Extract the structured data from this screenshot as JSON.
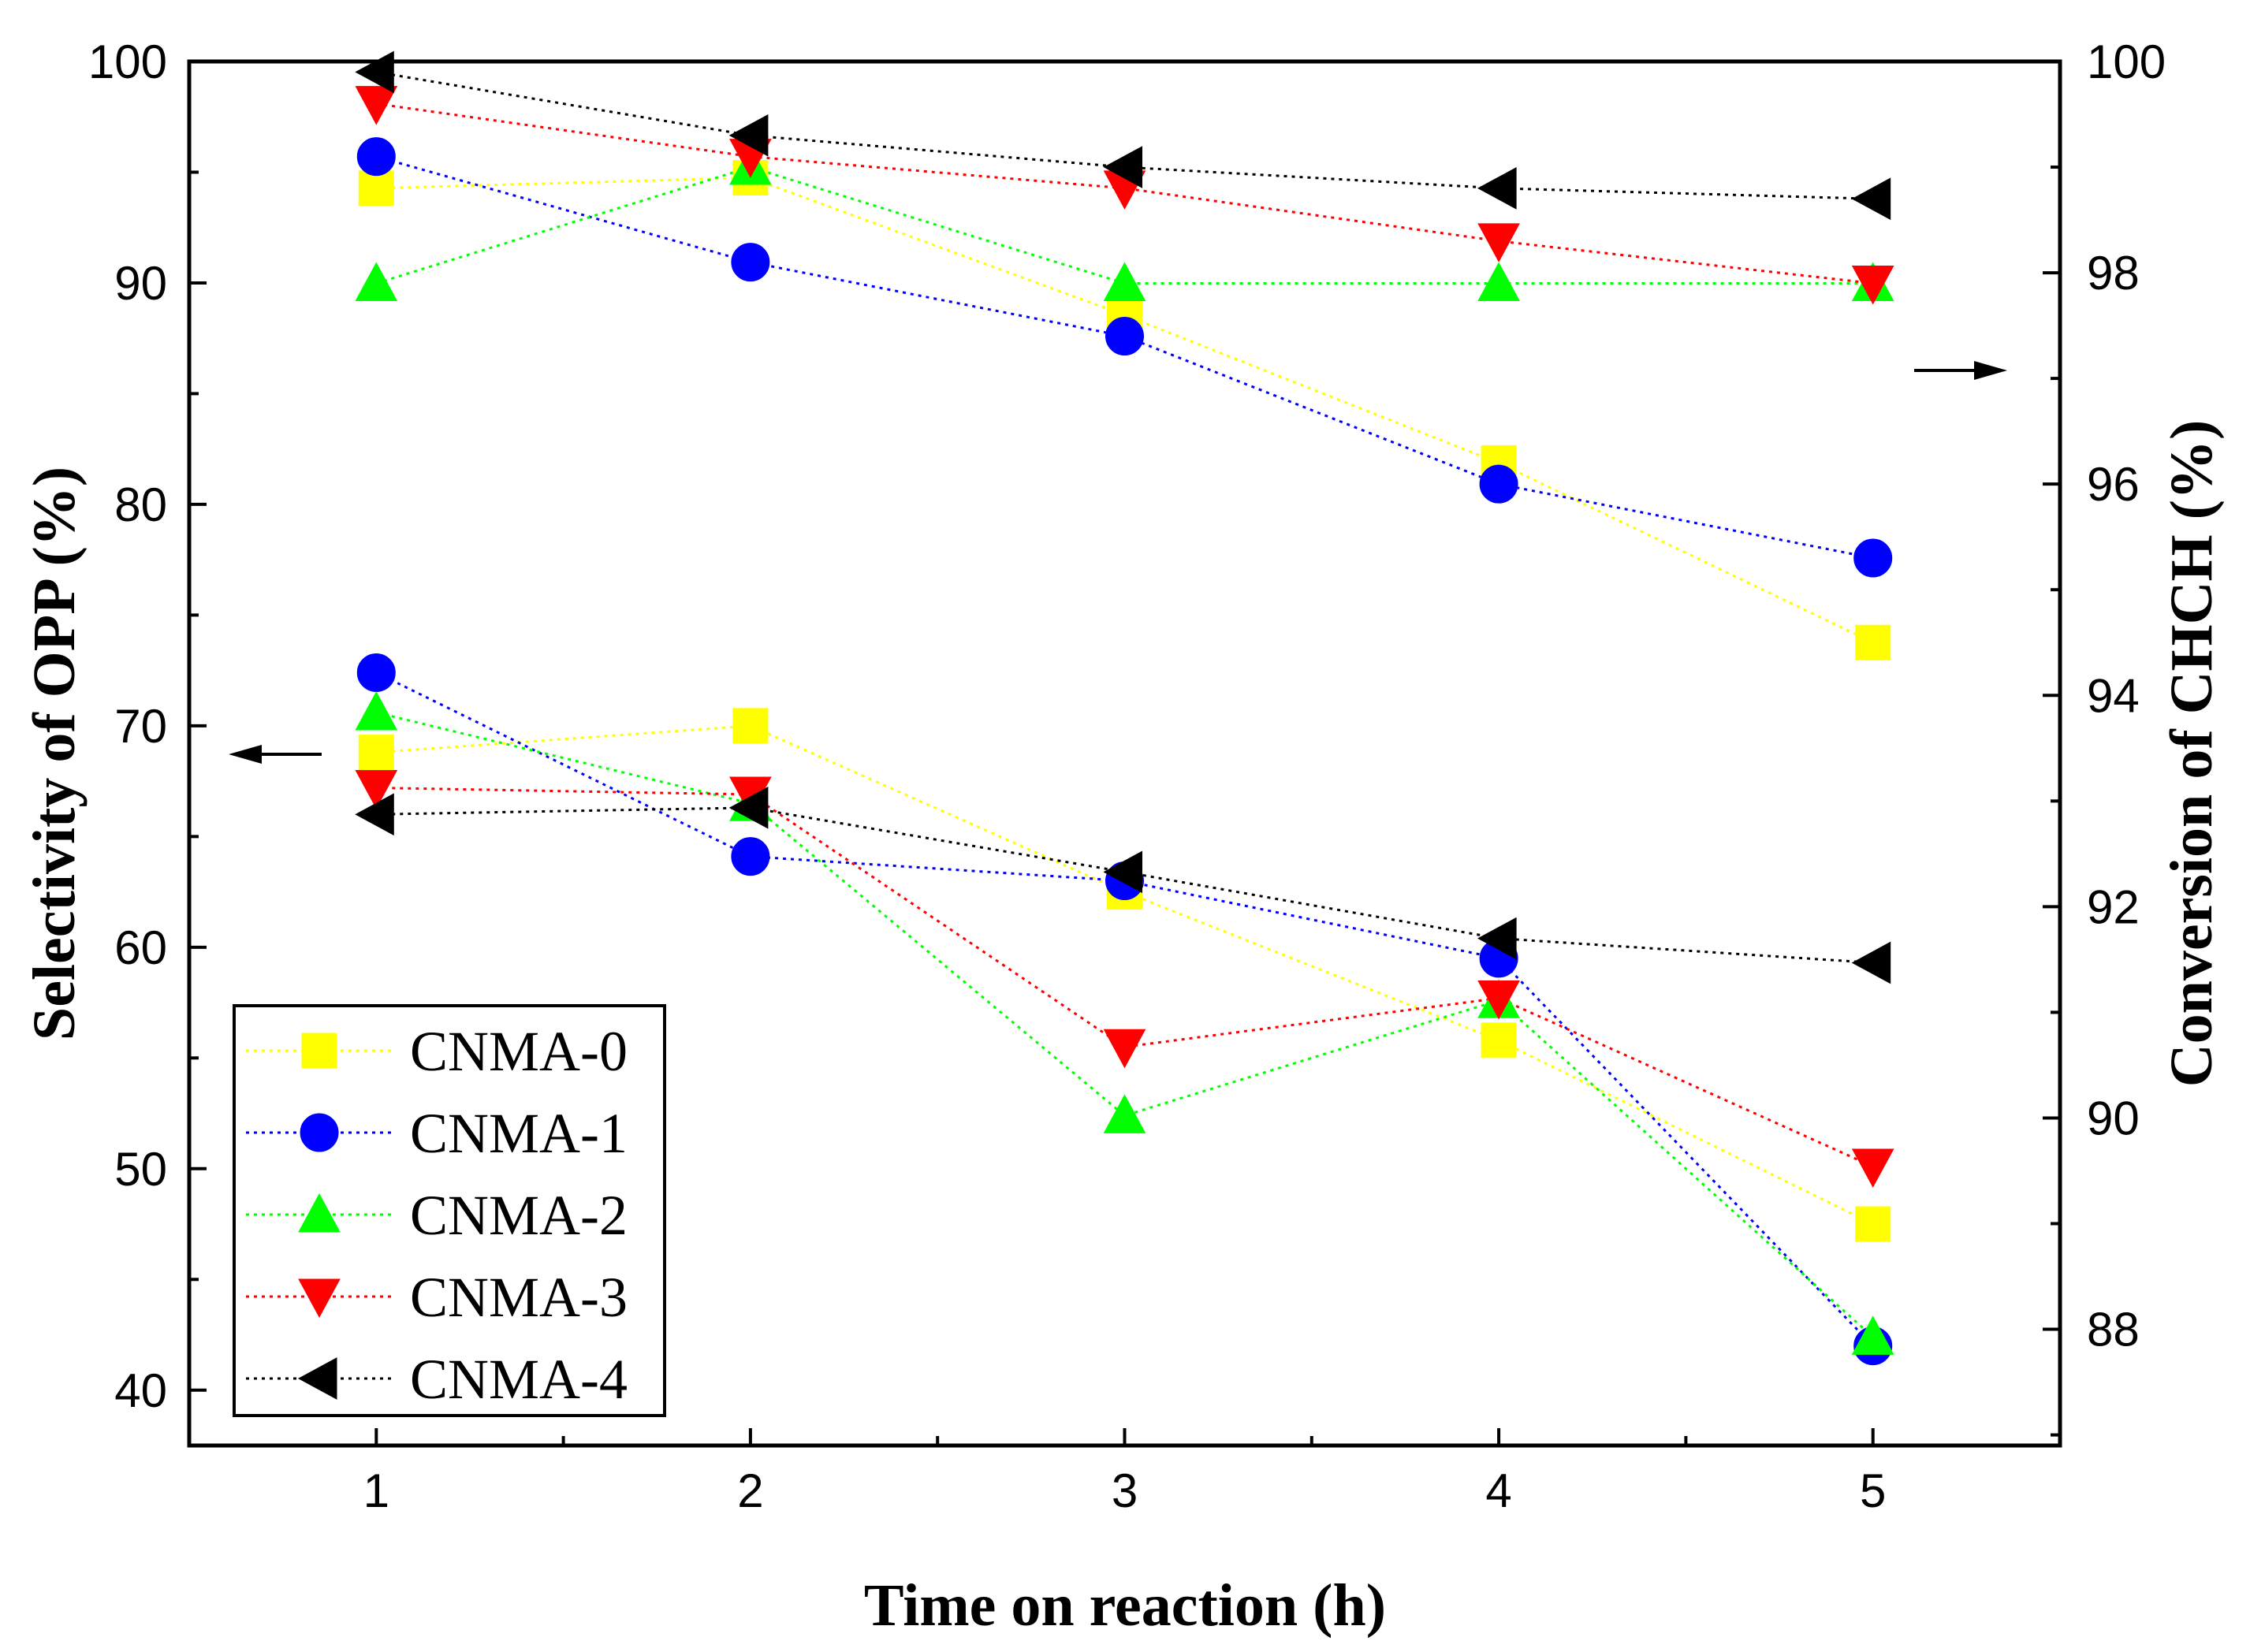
{
  "chart_data": {
    "type": "line",
    "title": "",
    "xlabel": "Time on reaction (h)",
    "ylabel_left": "Selectivity of OPP (%)",
    "ylabel_right": "Conversion of CHCH (%)",
    "x": [
      1,
      2,
      3,
      4,
      5
    ],
    "xlim": [
      0.5,
      5.5
    ],
    "ylim_left": [
      37.5,
      100
    ],
    "ylim_right": [
      86.9,
      100
    ],
    "xticks": [
      "1",
      "2",
      "3",
      "4",
      "5"
    ],
    "yticks_left": [
      "40",
      "50",
      "60",
      "70",
      "80",
      "90",
      "100"
    ],
    "yticks_right": [
      "88",
      "90",
      "92",
      "94",
      "96",
      "98",
      "100"
    ],
    "legend_position": "bottom-left",
    "grid": false,
    "series": [
      {
        "name": "CNMA-0",
        "marker": "square",
        "color": "#ffff00",
        "selectivity": [
          68.8,
          70.0,
          62.5,
          55.8,
          47.5
        ],
        "conversion": [
          98.8,
          98.9,
          97.6,
          96.2,
          94.5
        ]
      },
      {
        "name": "CNMA-1",
        "marker": "circle",
        "color": "#0000ff",
        "selectivity": [
          72.4,
          64.1,
          63.0,
          59.5,
          42.0
        ],
        "conversion": [
          99.1,
          98.1,
          97.4,
          96.0,
          95.3
        ]
      },
      {
        "name": "CNMA-2",
        "marker": "triangle-up",
        "color": "#00ff00",
        "selectivity": [
          70.6,
          66.5,
          52.4,
          57.6,
          42.4
        ],
        "conversion": [
          97.9,
          99.0,
          97.9,
          97.9,
          97.9
        ]
      },
      {
        "name": "CNMA-3",
        "marker": "triangle-down",
        "color": "#ff0000",
        "selectivity": [
          67.2,
          66.9,
          55.5,
          57.7,
          50.1
        ],
        "conversion": [
          99.6,
          99.1,
          98.8,
          98.3,
          97.9
        ]
      },
      {
        "name": "CNMA-4",
        "marker": "triangle-left",
        "color": "#000000",
        "selectivity": [
          66.0,
          66.3,
          63.4,
          60.4,
          59.3
        ],
        "conversion": [
          99.9,
          99.3,
          99.0,
          98.8,
          98.7
        ]
      }
    ]
  }
}
